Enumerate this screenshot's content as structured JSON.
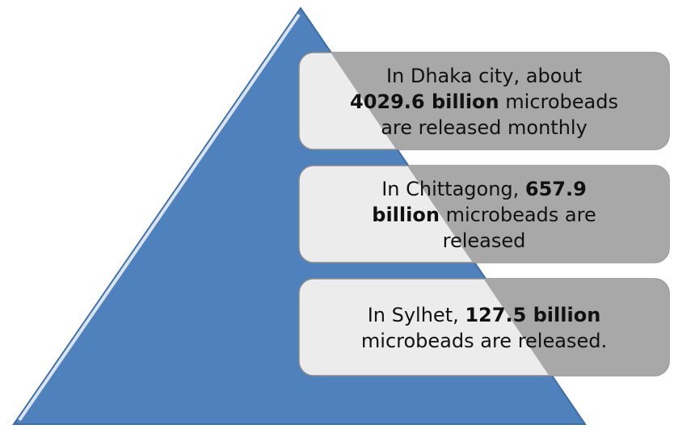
{
  "colors": {
    "pyramid_fill": "#4f81bd",
    "pyramid_highlight": "#d9e4f2",
    "pyramid_outline": "#3f6da5",
    "box_fill": "#ececec",
    "box_overlay": "#a8a8a8",
    "box_stroke": "#8a8a8a",
    "text": "#111111"
  },
  "boxes": [
    {
      "lines": [
        [
          {
            "text": "In Dhaka city, about",
            "bold": false
          }
        ],
        [
          {
            "text": "4029.6 billion",
            "bold": true
          },
          {
            "text": " microbeads",
            "bold": false
          }
        ],
        [
          {
            "text": "are  released monthly",
            "bold": false
          }
        ]
      ]
    },
    {
      "lines": [
        [
          {
            "text": "In Chittagong, ",
            "bold": false
          },
          {
            "text": "657.9",
            "bold": true
          }
        ],
        [
          {
            "text": "billion",
            "bold": true
          },
          {
            "text": " microbeads  are",
            "bold": false
          }
        ],
        [
          {
            "text": "released",
            "bold": false
          }
        ]
      ]
    },
    {
      "lines": [
        [
          {
            "text": "In Sylhet, ",
            "bold": false
          },
          {
            "text": "127.5 billion",
            "bold": true
          }
        ],
        [
          {
            "text": "microbeads are released.",
            "bold": false
          }
        ]
      ]
    }
  ]
}
